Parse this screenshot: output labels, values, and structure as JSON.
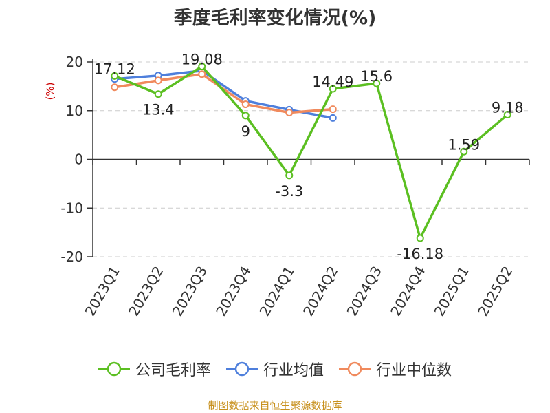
{
  "chart_data": {
    "type": "line",
    "title": "季度毛利率变化情况(%)",
    "ylabel": "(%)",
    "xlabel": "",
    "categories": [
      "2023Q1",
      "2023Q2",
      "2023Q3",
      "2023Q4",
      "2024Q1",
      "2024Q2",
      "2024Q3",
      "2024Q4",
      "2025Q1",
      "2025Q2"
    ],
    "ylim": [
      -20,
      20
    ],
    "yticks": [
      -20,
      -10,
      0,
      10,
      20
    ],
    "grid": true,
    "legend_position": "bottom",
    "series": [
      {
        "name": "公司毛利率",
        "color": "#5bbf21",
        "values": [
          17.12,
          13.4,
          19.08,
          9,
          -3.3,
          14.49,
          15.6,
          -16.18,
          1.59,
          9.18
        ],
        "labels": [
          "17.12",
          "13.4",
          "19.08",
          "9",
          "-3.3",
          "14.49",
          "15.6",
          "-16.18",
          "1.59",
          "9.18"
        ]
      },
      {
        "name": "行业均值",
        "color": "#4e7fdc",
        "values": [
          16.5,
          17.2,
          18.2,
          12.0,
          10.2,
          8.5,
          null,
          null,
          null,
          null
        ]
      },
      {
        "name": "行业中位数",
        "color": "#f08a5d",
        "values": [
          14.8,
          16.2,
          17.5,
          11.3,
          9.6,
          10.3,
          null,
          null,
          null,
          null
        ]
      }
    ]
  },
  "source": "制图数据来自恒生聚源数据库"
}
